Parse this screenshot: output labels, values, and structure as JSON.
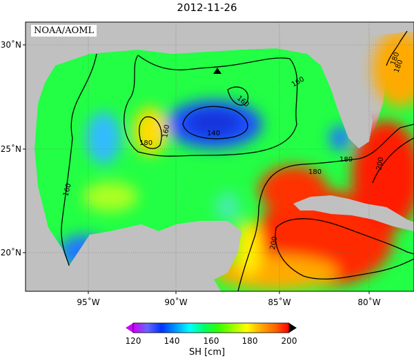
{
  "title": "2012-11-26",
  "credit": "NOAA/AOML",
  "lat_axis": {
    "ticks": [
      {
        "value": 30,
        "label": "30˚N"
      },
      {
        "value": 25,
        "label": "25˚N"
      },
      {
        "value": 20,
        "label": "20˚N"
      }
    ]
  },
  "lon_axis": {
    "ticks": [
      {
        "value": -95,
        "label": "95˚W"
      },
      {
        "value": -90,
        "label": "90˚W"
      },
      {
        "value": -85,
        "label": "85˚W"
      },
      {
        "value": -80,
        "label": "80˚W"
      }
    ]
  },
  "contour_labels": [
    "180",
    "160",
    "140",
    "180",
    "160",
    "160",
    "180",
    "180",
    "160",
    "200",
    "200",
    "180"
  ],
  "colorbar": {
    "label": "SH [cm]",
    "ticks": [
      "120",
      "140",
      "160",
      "180",
      "200"
    ],
    "colors": [
      "#cc00ff",
      "#6666ff",
      "#0033ff",
      "#0099ff",
      "#00ffff",
      "#00ff66",
      "#33ff00",
      "#99ff00",
      "#ffff00",
      "#ffaa00",
      "#ff6600",
      "#ff0000"
    ]
  },
  "marker": "triangle",
  "land_color": "#c0c0c0",
  "chart_data": {
    "type": "heatmap",
    "title": "2012-11-26",
    "variable": "SH [cm]",
    "xlim": [
      -98,
      -78
    ],
    "ylim": [
      18,
      31
    ],
    "clim": [
      120,
      200
    ],
    "contour_levels": [
      140,
      160,
      180,
      200
    ],
    "features": [
      {
        "name": "Loop Current warm core",
        "approx_value": 200
      },
      {
        "name": "cyclonic low central Gulf",
        "approx_value": 140
      },
      {
        "name": "warm eddy western Gulf",
        "approx_value": 180
      }
    ]
  }
}
